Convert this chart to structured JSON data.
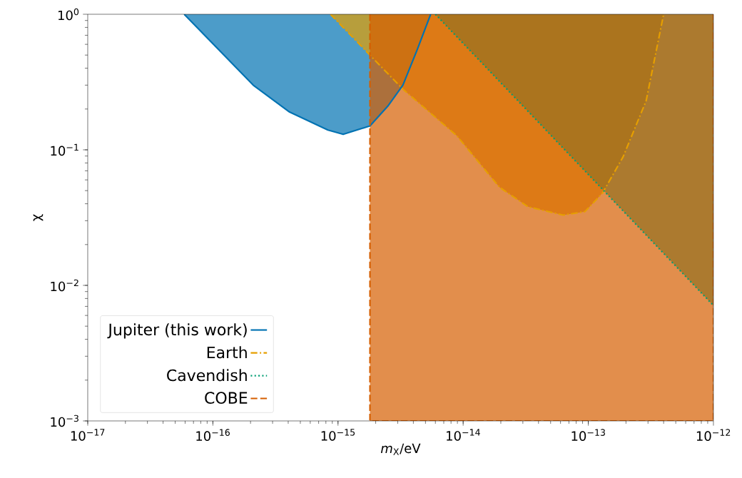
{
  "chart_data": {
    "type": "area",
    "xlabel": "*m*$_{X}$/eV",
    "ylabel": "χ",
    "log": "xy",
    "legend": "bottom left",
    "grid": false,
    "xlim": [
      1e-17,
      1e-12
    ],
    "ylim": [
      0.001,
      1
    ],
    "xticks": [
      {
        "value": 1e-17,
        "label": "10$^{−17}$"
      },
      {
        "value": 1e-16,
        "label": "10$^{−16}$"
      },
      {
        "value": 1e-15,
        "label": "10$^{−15}$"
      },
      {
        "value": 1e-14,
        "label": "10$^{−14}$"
      },
      {
        "value": 1e-13,
        "label": "10$^{−13}$"
      },
      {
        "value": 1e-12,
        "label": "10$^{−12}$"
      }
    ],
    "yticks": [
      {
        "value": 0.001,
        "label": "10$^{−3}$"
      },
      {
        "value": 0.01,
        "label": "10$^{−2}$"
      },
      {
        "value": 0.1,
        "label": "10$^{−1}$"
      },
      {
        "value": 1,
        "label": "10$^{0}$"
      }
    ],
    "series": [
      {
        "name": "Jupiter (this work)",
        "color": "#0072b2",
        "line_style": "solid",
        "x": [
          5.9e-17,
          2.1e-16,
          4.1e-16,
          8.3e-16,
          1.1e-15,
          1.8e-15,
          2.5e-15,
          3.3e-15,
          4.3e-15,
          5.5e-15
        ],
        "values": [
          1,
          0.3,
          0.19,
          0.14,
          0.13,
          0.15,
          0.21,
          0.3,
          0.55,
          1
        ]
      },
      {
        "name": "Earth",
        "color": "#e69f00",
        "line_style": "dashdot",
        "x": [
          8.7e-16,
          3.3e-15,
          8.9e-15,
          1.95e-14,
          3.3e-14,
          6.3e-14,
          9.4e-14,
          1.3e-13,
          1.9e-13,
          2.9e-13,
          4e-13
        ],
        "values": [
          1,
          0.28,
          0.127,
          0.053,
          0.038,
          0.033,
          0.035,
          0.048,
          0.089,
          0.23,
          1
        ]
      },
      {
        "name": "Cavendish",
        "color": "#009e73",
        "line_style": "dotted",
        "x": [
          6e-15,
          1e-12
        ],
        "values": [
          1,
          0.0071
        ]
      },
      {
        "name": "COBE",
        "color": "#d55e00",
        "line_style": "dashed",
        "x": [
          1.8e-15,
          1.8e-15,
          1e-12,
          1e-12
        ],
        "values": [
          1,
          0.001,
          0.001,
          1
        ]
      }
    ]
  }
}
